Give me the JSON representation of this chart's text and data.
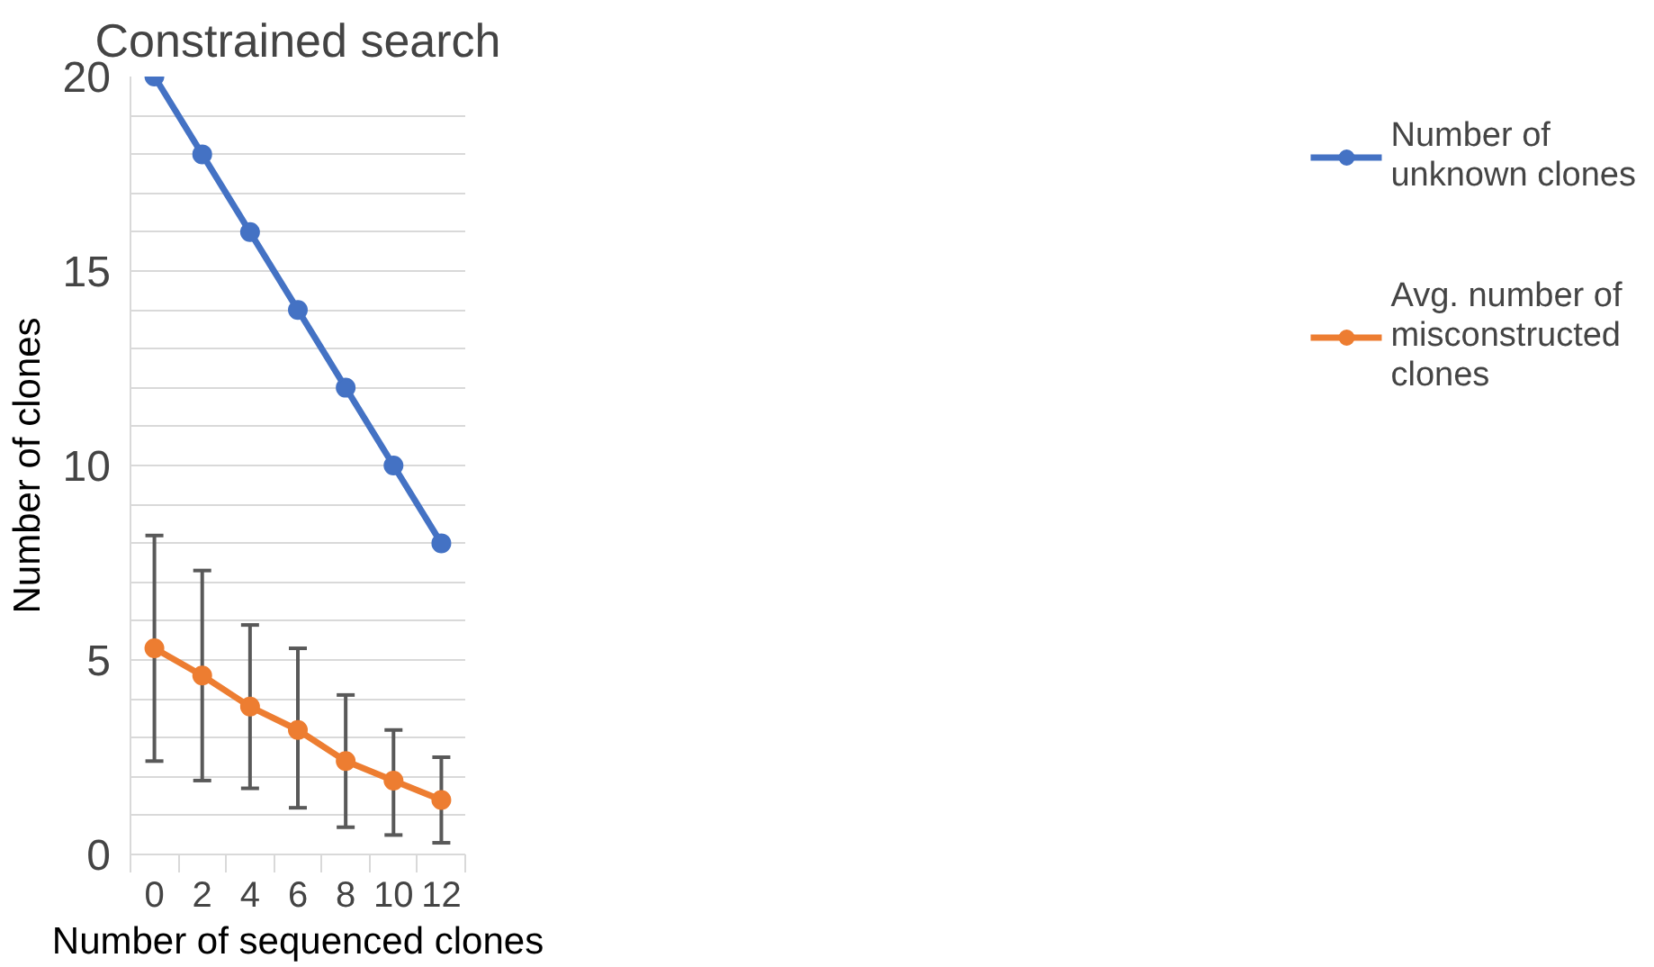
{
  "chart_data": {
    "type": "line",
    "title": "Constrained search",
    "xlabel": "Number of sequenced clones",
    "ylabel": "Number of clones",
    "categories": [
      "0",
      "2",
      "4",
      "6",
      "8",
      "10",
      "12"
    ],
    "series": [
      {
        "name": "Number of unknown clones",
        "color": "#4472c4",
        "values": [
          20,
          18,
          16,
          14,
          12,
          10,
          8
        ]
      },
      {
        "name": "Avg. number of misconstructed clones",
        "color": "#ed7d31",
        "values": [
          5.3,
          4.6,
          3.8,
          3.2,
          2.4,
          1.9,
          1.4
        ],
        "errors": [
          [
            2.4,
            8.2
          ],
          [
            1.9,
            7.3
          ],
          [
            1.7,
            5.9
          ],
          [
            1.2,
            5.3
          ],
          [
            0.7,
            4.1
          ],
          [
            0.5,
            3.2
          ],
          [
            0.3,
            2.5
          ]
        ]
      }
    ],
    "ylim": [
      0,
      20
    ],
    "yticks": [
      0,
      {
        "value": 1,
        "label": null
      },
      {
        "value": 2,
        "label": null
      },
      {
        "value": 3,
        "label": null
      },
      {
        "value": 4,
        "label": null
      },
      5,
      {
        "value": 6,
        "label": null
      },
      {
        "value": 7,
        "label": null
      },
      {
        "value": 8,
        "label": null
      },
      {
        "value": 9,
        "label": null
      },
      10,
      {
        "value": 11,
        "label": null
      },
      {
        "value": 12,
        "label": null
      },
      {
        "value": 13,
        "label": null
      },
      {
        "value": 14,
        "label": null
      },
      15,
      {
        "value": 16,
        "label": null
      },
      {
        "value": 17,
        "label": null
      },
      {
        "value": 18,
        "label": null
      },
      {
        "value": 19,
        "label": null
      },
      20
    ],
    "grid": "y",
    "legend": "right",
    "marker": "circle",
    "line_style": "solid"
  }
}
